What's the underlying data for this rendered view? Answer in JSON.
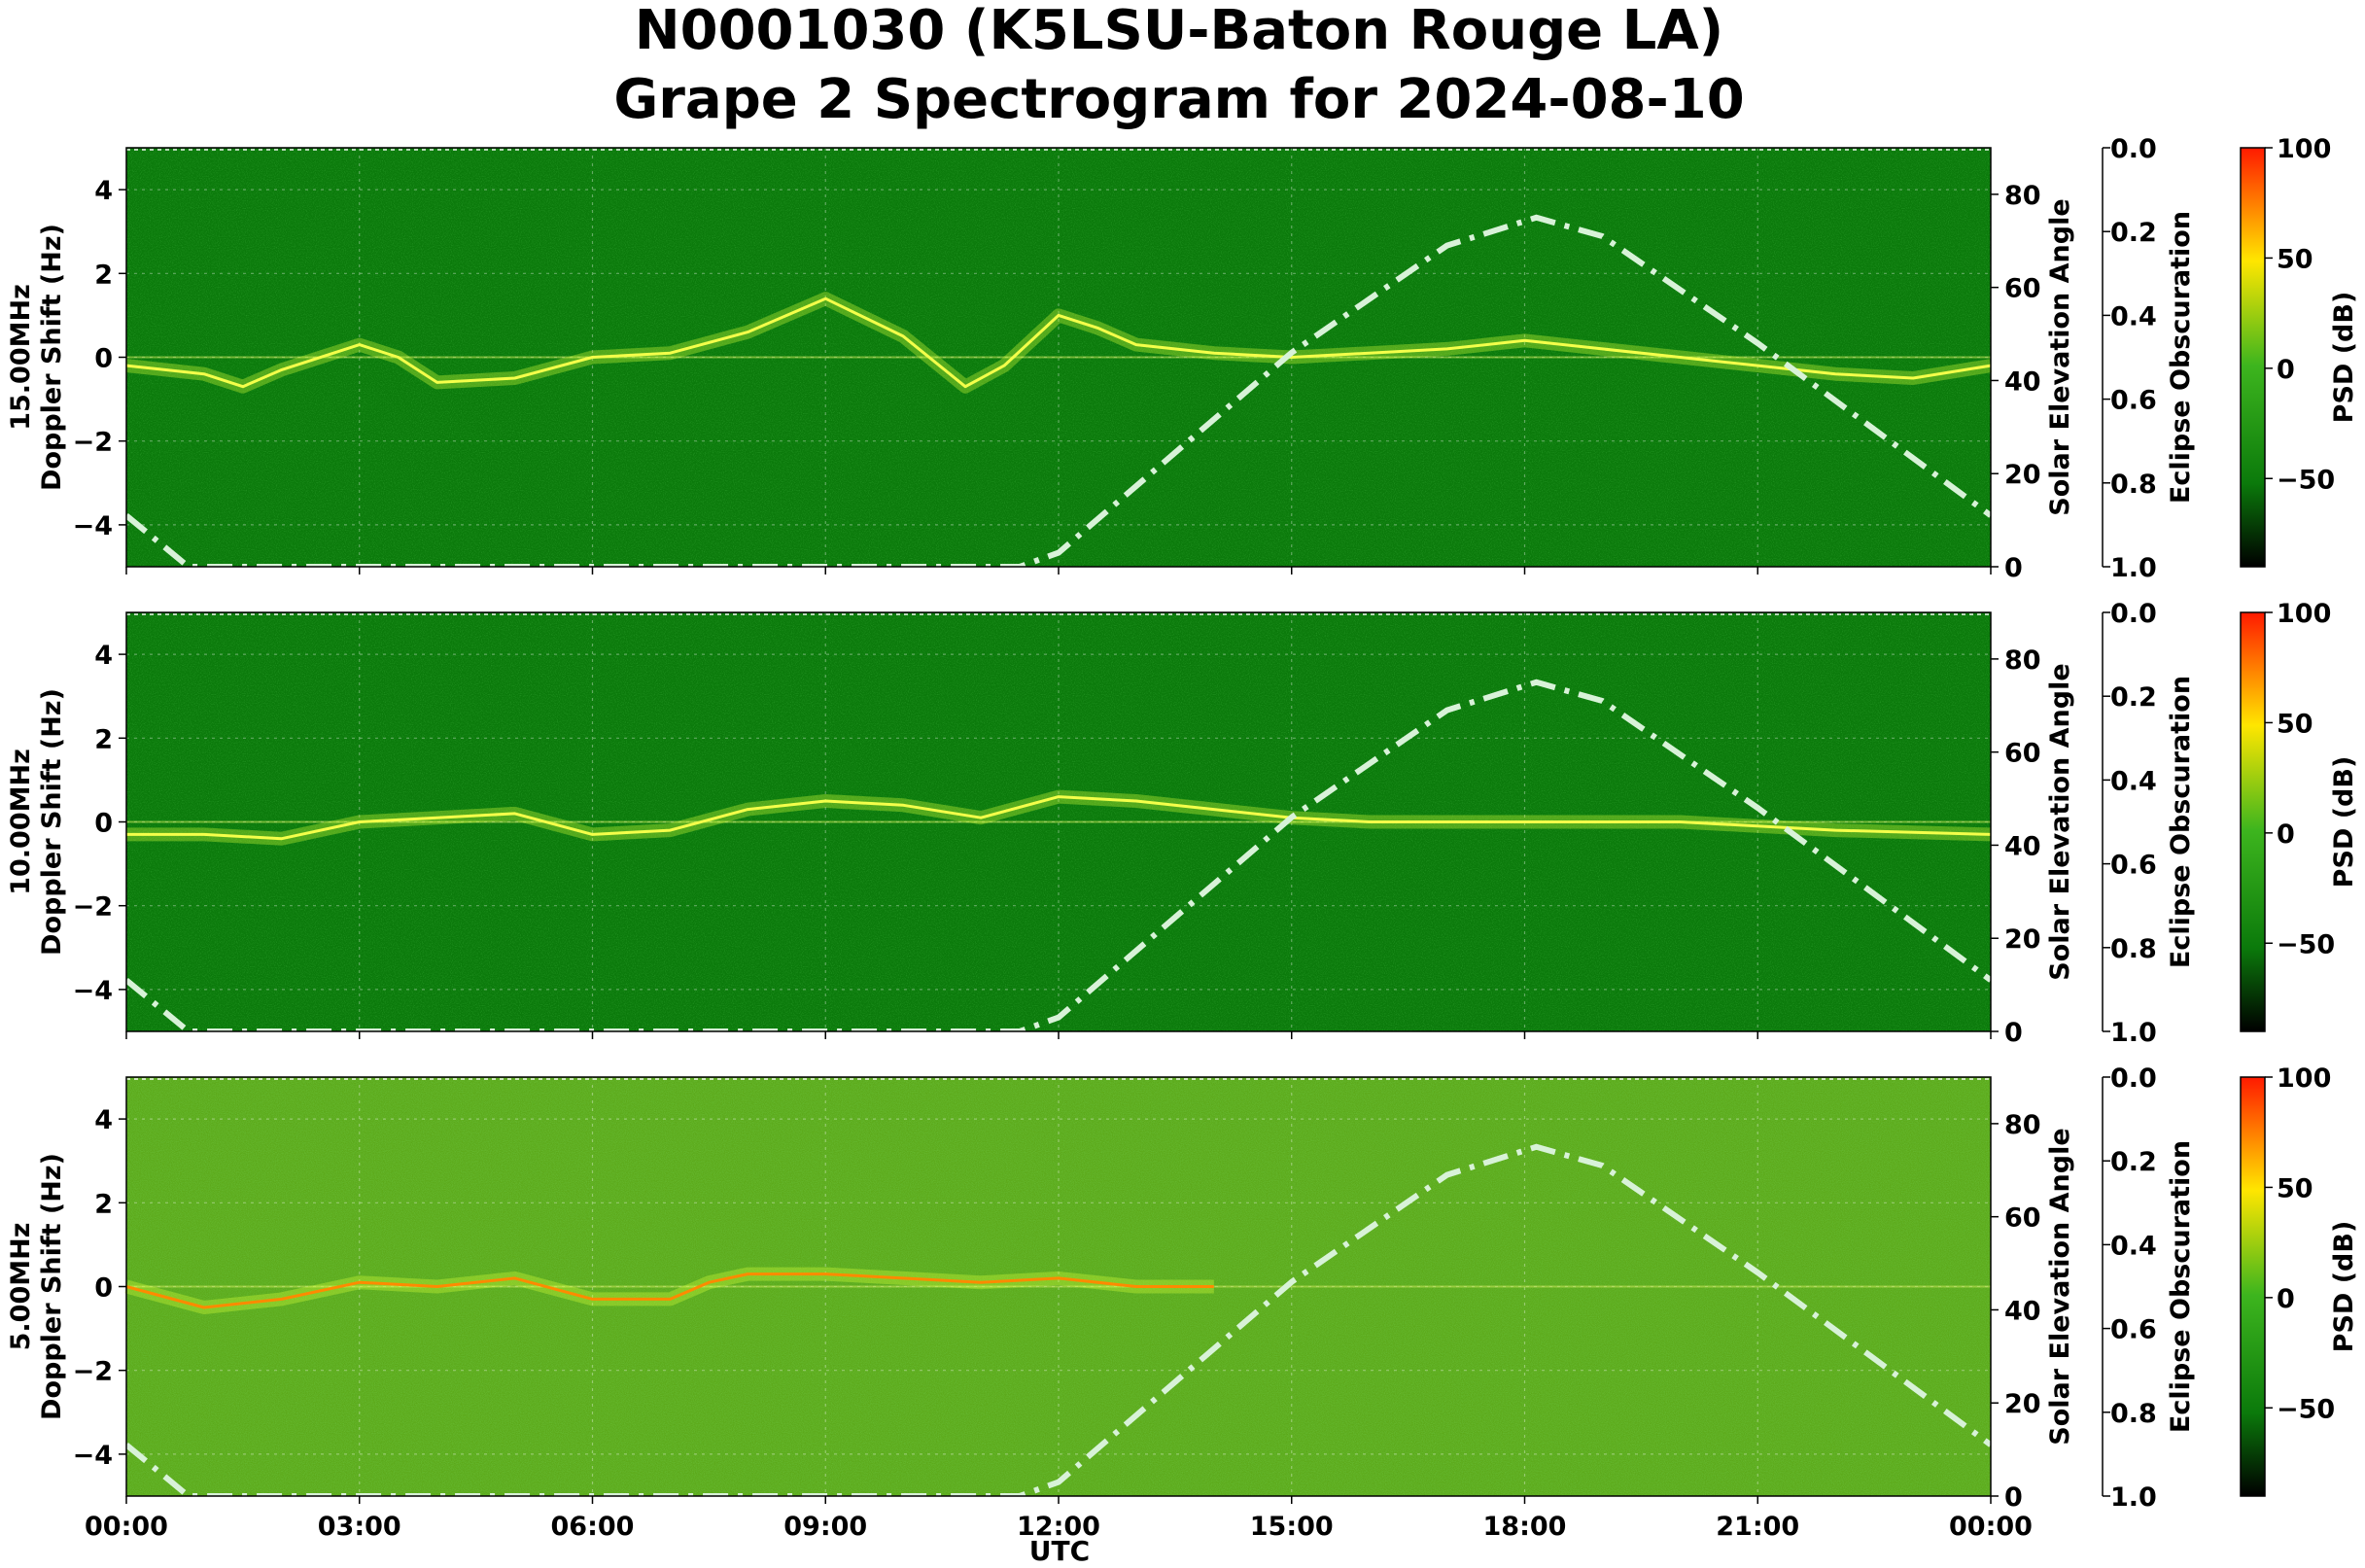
{
  "figure": {
    "title_line1": "N0001030 (K5LSU-Baton Rouge LA)",
    "title_line2": "Grape 2 Spectrogram for 2024-08-10",
    "xlabel": "UTC"
  },
  "chart_data": [
    {
      "type": "heatmap",
      "frequency_label": "15.00MHz",
      "ylabel": "Doppler Shift (Hz)",
      "ylim": [
        -5,
        5
      ],
      "yticks": [
        "4",
        "2",
        "0",
        "−2",
        "−4"
      ],
      "y2label": "Solar Elevation Angle",
      "y2lim": [
        0,
        90
      ],
      "y2ticks": [
        "80",
        "60",
        "40",
        "20",
        "0"
      ],
      "y3label": "Eclipse Obscuration",
      "y3lim": [
        0.0,
        1.0
      ],
      "y3ticks": [
        "0.0",
        "0.2",
        "0.4",
        "0.6",
        "0.8",
        "1.0"
      ],
      "colorbar_label": "PSD (dB)",
      "colorbar_range": [
        -90,
        100
      ],
      "colorbar_ticks": [
        "100",
        "50",
        "0",
        "−50"
      ],
      "xticks": [
        "00:00",
        "03:00",
        "06:00",
        "09:00",
        "12:00",
        "15:00",
        "18:00",
        "21:00",
        "00:00"
      ],
      "xlim_hours": [
        0,
        24
      ],
      "background_color": "#0b7a0b",
      "doppler_trace_hz": [
        [
          0,
          -0.2
        ],
        [
          1,
          -0.4
        ],
        [
          1.5,
          -0.7
        ],
        [
          2,
          -0.3
        ],
        [
          3,
          0.3
        ],
        [
          3.5,
          0
        ],
        [
          4,
          -0.6
        ],
        [
          5,
          -0.5
        ],
        [
          6,
          0
        ],
        [
          7,
          0.1
        ],
        [
          8,
          0.6
        ],
        [
          9,
          1.4
        ],
        [
          10,
          0.5
        ],
        [
          10.8,
          -0.7
        ],
        [
          11.3,
          -0.2
        ],
        [
          12,
          1.0
        ],
        [
          12.5,
          0.7
        ],
        [
          13,
          0.3
        ],
        [
          14,
          0.1
        ],
        [
          15,
          0
        ],
        [
          16,
          0.1
        ],
        [
          17,
          0.2
        ],
        [
          18,
          0.4
        ],
        [
          19,
          0.2
        ],
        [
          20,
          0
        ],
        [
          21,
          -0.2
        ],
        [
          22,
          -0.4
        ],
        [
          23,
          -0.5
        ],
        [
          24,
          -0.2
        ]
      ],
      "solar_elevation_deg": [
        [
          0,
          11
        ],
        [
          0.8,
          0
        ],
        [
          11.5,
          0
        ],
        [
          12,
          3
        ],
        [
          15,
          46
        ],
        [
          17,
          69
        ],
        [
          18.15,
          75
        ],
        [
          19,
          71
        ],
        [
          21,
          48
        ],
        [
          24,
          11
        ]
      ]
    },
    {
      "type": "heatmap",
      "frequency_label": "10.00MHz",
      "ylabel": "Doppler Shift (Hz)",
      "ylim": [
        -5,
        5
      ],
      "yticks": [
        "4",
        "2",
        "0",
        "−2",
        "−4"
      ],
      "y2label": "Solar Elevation Angle",
      "y2lim": [
        0,
        90
      ],
      "y2ticks": [
        "80",
        "60",
        "40",
        "20",
        "0"
      ],
      "y3label": "Eclipse Obscuration",
      "y3lim": [
        0.0,
        1.0
      ],
      "y3ticks": [
        "0.0",
        "0.2",
        "0.4",
        "0.6",
        "0.8",
        "1.0"
      ],
      "colorbar_label": "PSD (dB)",
      "colorbar_range": [
        -90,
        100
      ],
      "colorbar_ticks": [
        "100",
        "50",
        "0",
        "−50"
      ],
      "xticks": [
        "00:00",
        "03:00",
        "06:00",
        "09:00",
        "12:00",
        "15:00",
        "18:00",
        "21:00",
        "00:00"
      ],
      "xlim_hours": [
        0,
        24
      ],
      "background_color": "#0b7a0b",
      "doppler_trace_hz": [
        [
          0,
          -0.3
        ],
        [
          1,
          -0.3
        ],
        [
          2,
          -0.4
        ],
        [
          3,
          0
        ],
        [
          4,
          0.1
        ],
        [
          5,
          0.2
        ],
        [
          6,
          -0.3
        ],
        [
          7,
          -0.2
        ],
        [
          8,
          0.3
        ],
        [
          9,
          0.5
        ],
        [
          10,
          0.4
        ],
        [
          11,
          0.1
        ],
        [
          12,
          0.6
        ],
        [
          13,
          0.5
        ],
        [
          14,
          0.3
        ],
        [
          15,
          0.1
        ],
        [
          16,
          0
        ],
        [
          20,
          0
        ],
        [
          22,
          -0.2
        ],
        [
          24,
          -0.3
        ]
      ],
      "solar_elevation_deg": [
        [
          0,
          11
        ],
        [
          0.8,
          0
        ],
        [
          11.5,
          0
        ],
        [
          12,
          3
        ],
        [
          15,
          46
        ],
        [
          17,
          69
        ],
        [
          18.15,
          75
        ],
        [
          19,
          71
        ],
        [
          21,
          48
        ],
        [
          24,
          11
        ]
      ]
    },
    {
      "type": "heatmap",
      "frequency_label": "5.00MHz",
      "ylabel": "Doppler Shift (Hz)",
      "ylim": [
        -5,
        5
      ],
      "yticks": [
        "4",
        "2",
        "0",
        "−2",
        "−4"
      ],
      "y2label": "Solar Elevation Angle",
      "y2lim": [
        0,
        90
      ],
      "y2ticks": [
        "80",
        "60",
        "40",
        "20",
        "0"
      ],
      "y3label": "Eclipse Obscuration",
      "y3lim": [
        0.0,
        1.0
      ],
      "y3ticks": [
        "0.0",
        "0.2",
        "0.4",
        "0.6",
        "0.8",
        "1.0"
      ],
      "colorbar_label": "PSD (dB)",
      "colorbar_range": [
        -90,
        100
      ],
      "colorbar_ticks": [
        "100",
        "50",
        "0",
        "−50"
      ],
      "xticks": [
        "00:00",
        "03:00",
        "06:00",
        "09:00",
        "12:00",
        "15:00",
        "18:00",
        "21:00",
        "00:00"
      ],
      "xlim_hours": [
        0,
        24
      ],
      "background_color": "#5ca91a",
      "doppler_trace_hz": [
        [
          0,
          0
        ],
        [
          1,
          -0.5
        ],
        [
          2,
          -0.3
        ],
        [
          3,
          0.1
        ],
        [
          4,
          0
        ],
        [
          5,
          0.2
        ],
        [
          6,
          -0.3
        ],
        [
          7,
          -0.3
        ],
        [
          7.5,
          0.1
        ],
        [
          8,
          0.3
        ],
        [
          9,
          0.3
        ],
        [
          10,
          0.2
        ],
        [
          11,
          0.1
        ],
        [
          12,
          0.2
        ],
        [
          13,
          0
        ],
        [
          14,
          0
        ]
      ],
      "solar_elevation_deg": [
        [
          0,
          11
        ],
        [
          0.8,
          0
        ],
        [
          11.5,
          0
        ],
        [
          12,
          3
        ],
        [
          15,
          46
        ],
        [
          17,
          69
        ],
        [
          18.15,
          75
        ],
        [
          19,
          71
        ],
        [
          21,
          48
        ],
        [
          24,
          11
        ]
      ]
    }
  ],
  "colors": {
    "elevation_curve": "#d8f2d8",
    "colorbar_stops": [
      "#ff1a00",
      "#ffe600",
      "#3db51e",
      "#0b7a0b",
      "#000000"
    ]
  }
}
